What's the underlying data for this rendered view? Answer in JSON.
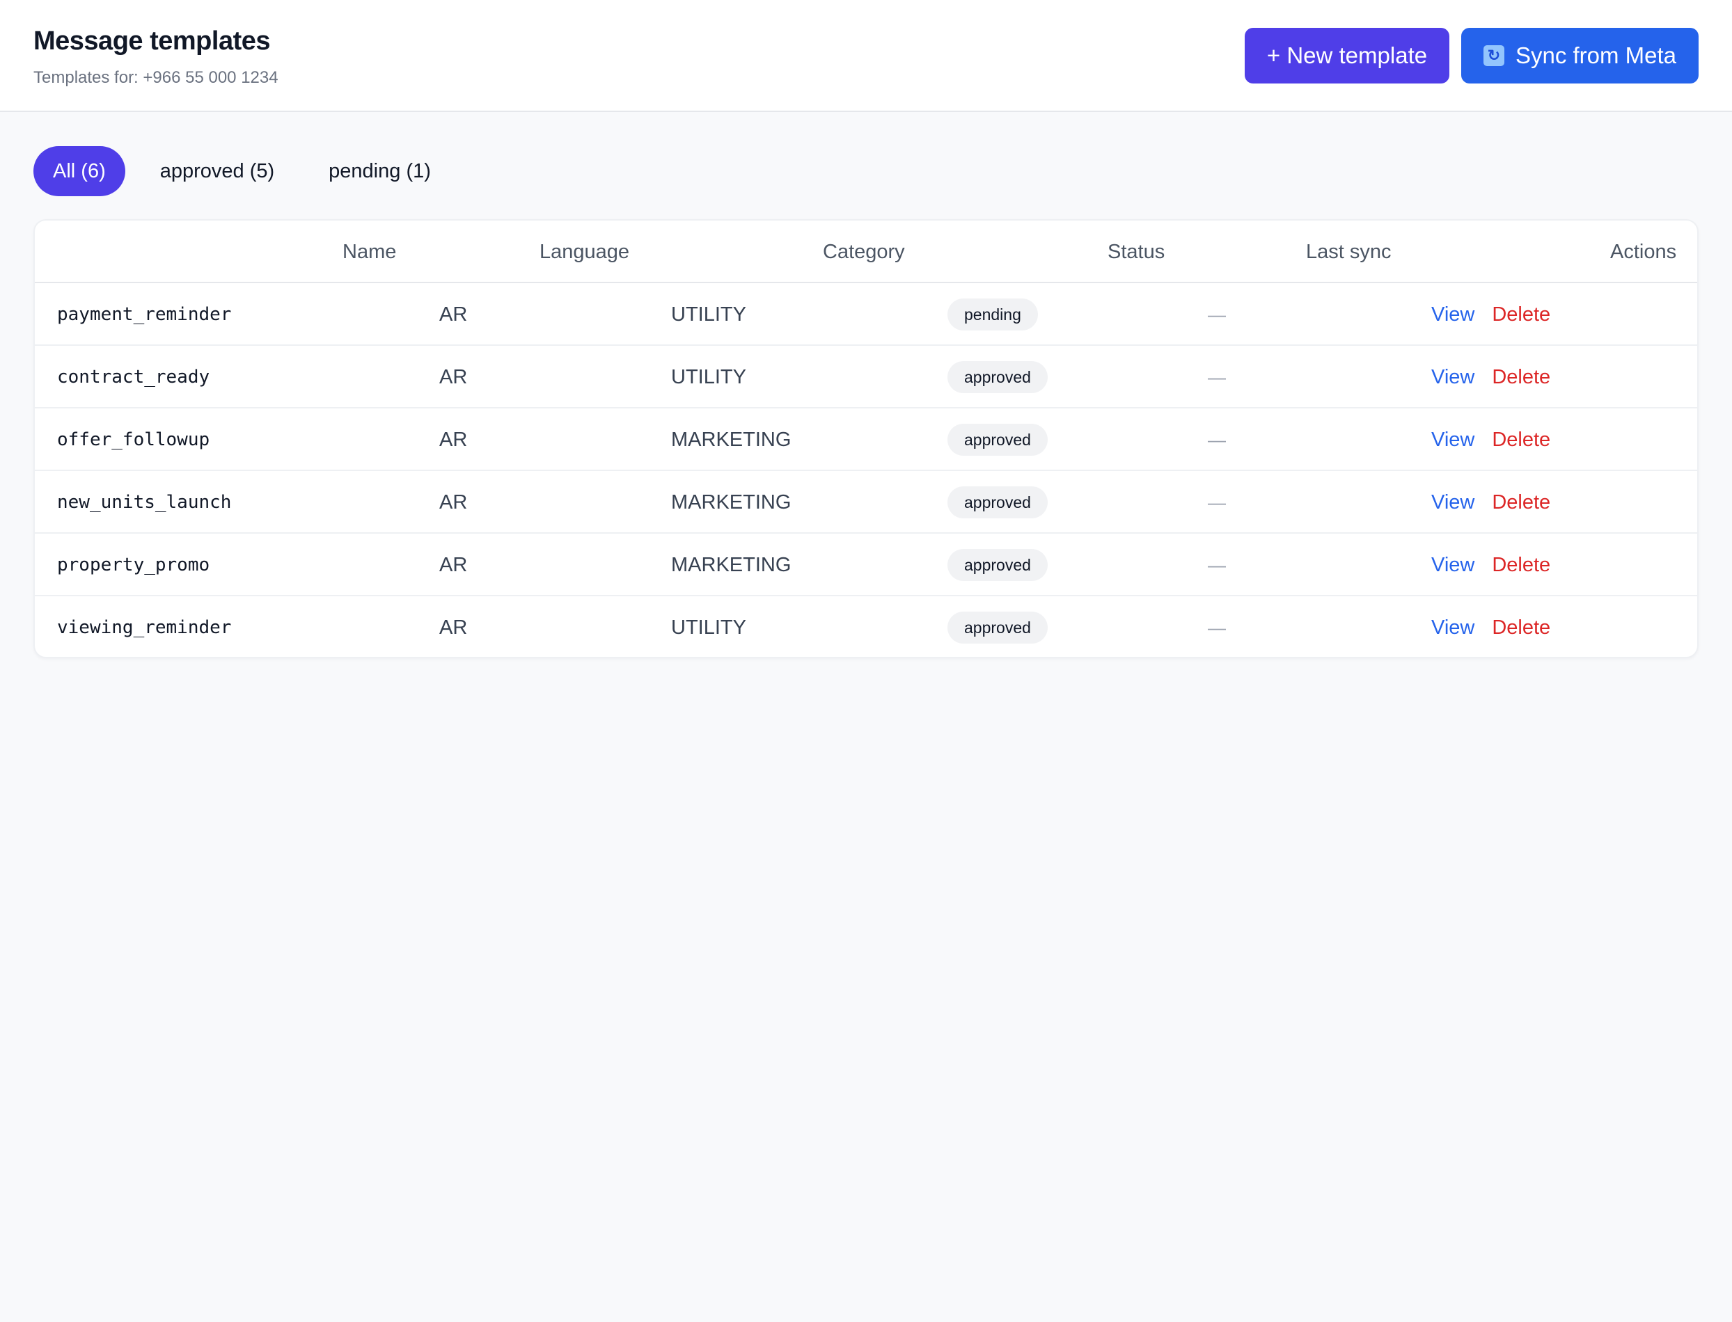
{
  "header": {
    "title": "Message templates",
    "subtitle": "Templates for: +966 55 000 1234",
    "new_template_label": "+ New template",
    "sync_label": "Sync from Meta",
    "sync_icon": "refresh-icon"
  },
  "filters": [
    {
      "label": "All (6)",
      "active": true
    },
    {
      "label": "approved (5)",
      "active": false
    },
    {
      "label": "pending (1)",
      "active": false
    }
  ],
  "table": {
    "columns": [
      "Name",
      "Language",
      "Category",
      "Status",
      "Last sync",
      "Actions"
    ],
    "rows": [
      {
        "name": "payment_reminder",
        "language": "AR",
        "category": "UTILITY",
        "status": "pending",
        "last_sync": "—",
        "view": "View",
        "delete": "Delete"
      },
      {
        "name": "contract_ready",
        "language": "AR",
        "category": "UTILITY",
        "status": "approved",
        "last_sync": "—",
        "view": "View",
        "delete": "Delete"
      },
      {
        "name": "offer_followup",
        "language": "AR",
        "category": "MARKETING",
        "status": "approved",
        "last_sync": "—",
        "view": "View",
        "delete": "Delete"
      },
      {
        "name": "new_units_launch",
        "language": "AR",
        "category": "MARKETING",
        "status": "approved",
        "last_sync": "—",
        "view": "View",
        "delete": "Delete"
      },
      {
        "name": "property_promo",
        "language": "AR",
        "category": "MARKETING",
        "status": "approved",
        "last_sync": "—",
        "view": "View",
        "delete": "Delete"
      },
      {
        "name": "viewing_reminder",
        "language": "AR",
        "category": "UTILITY",
        "status": "approved",
        "last_sync": "—",
        "view": "View",
        "delete": "Delete"
      }
    ]
  },
  "colors": {
    "primary": "#4f3ee8",
    "sync_button": "#2563eb",
    "link_view": "#2563eb",
    "link_delete": "#dc2626"
  }
}
